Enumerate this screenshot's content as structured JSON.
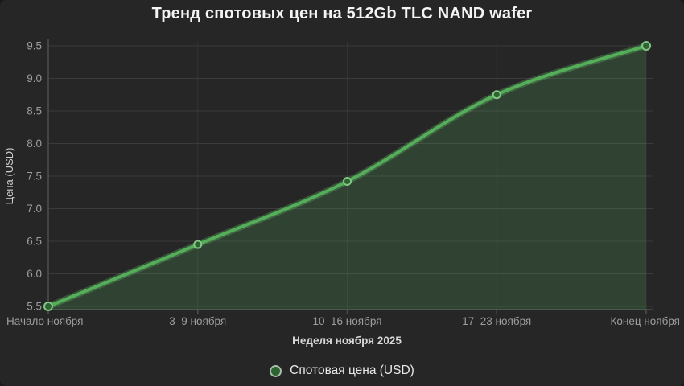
{
  "title": "Тренд спотовых цен на 512Gb TLC NAND wafer",
  "chart_data": {
    "type": "area",
    "title": "Тренд спотовых цен на 512Gb TLC NAND wafer",
    "categories": [
      "Начало ноября",
      "3–9 ноября",
      "10–16 ноября",
      "17–23 ноября",
      "Конец ноября"
    ],
    "series": [
      {
        "name": "Спотовая цена (USD)",
        "values": [
          5.5,
          6.45,
          7.42,
          8.75,
          9.5
        ]
      }
    ],
    "xlabel": "Неделя ноября 2025",
    "ylabel": "Цена (USD)",
    "ylim": [
      5.5,
      9.5
    ],
    "ytick_step": 0.5,
    "ytick_labels": [
      "5.5",
      "6.0",
      "6.5",
      "7.0",
      "7.5",
      "8.0",
      "8.5",
      "9.0",
      "9.5"
    ],
    "grid": true,
    "legend_position": "bottom",
    "colors": {
      "background": "#262626",
      "line": "#55ae59",
      "line_glow": "rgba(101,190,105,0.30)",
      "area_fill": "rgba(90,178,94,0.20)",
      "marker_fill": "#2e6332",
      "marker_stroke": "#82c685",
      "grid_h": "#3b3b3b",
      "grid_v": "#333333",
      "axis": "#4e4e4e",
      "tick_label": "#9d9d9d",
      "axis_title": "#cfcfcf",
      "xaxis_title": "#d8d8d8",
      "title": "#f4f4f4",
      "legend_text": "#e9e9e9"
    }
  }
}
